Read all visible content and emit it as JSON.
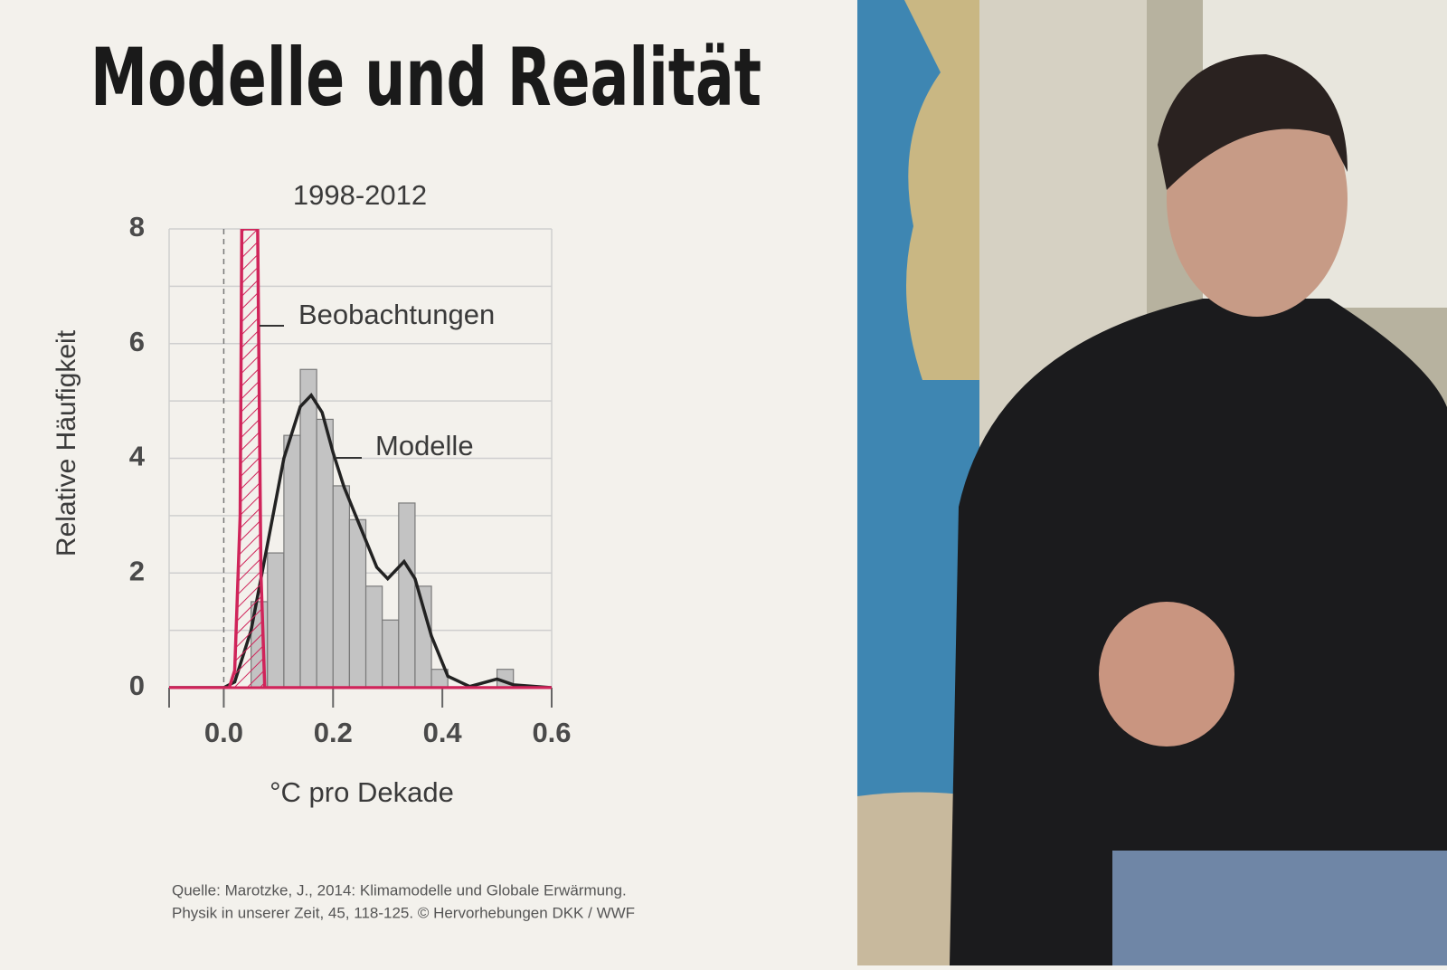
{
  "chart_data": {
    "type": "histogram",
    "title": "Modelle und Realität",
    "subtitle": "1998-2012",
    "y_label": "Relative Häufigkeit",
    "x_label": "°C pro Dekade",
    "source": [
      "Quelle: Marotzke, J., 2014: Klimamodelle und Globale Erwärmung.",
      "Physik in unserer Zeit, 45, 118-125. © Hervorhebungen DKK / WWF"
    ],
    "xlim": [
      -0.1,
      0.6
    ],
    "ylim": [
      0,
      8
    ],
    "xticks": [
      {
        "value": 0,
        "label": "0.0"
      },
      0.2,
      0.4,
      0.6
    ],
    "yticks": [
      0,
      2,
      4,
      6,
      8
    ],
    "y_minor_ticks": [
      1,
      3,
      5,
      7
    ],
    "grid": true,
    "reference_line_x": 0,
    "bins": [
      0.05,
      0.08,
      0.11,
      0.14,
      0.17,
      0.2,
      0.23,
      0.26,
      0.29,
      0.32,
      0.35,
      0.38,
      0.41,
      0.44,
      0.47,
      0.5,
      0.53
    ],
    "counts": [
      1.5,
      2.35,
      4.4,
      5.55,
      4.68,
      3.52,
      2.93,
      1.77,
      1.18,
      3.22,
      1.77,
      0.32,
      0,
      0,
      0,
      0.32
    ],
    "bar_color": "#c3c3c3",
    "series": [
      {
        "name": "Modelle",
        "color": "#222222",
        "x": [
          -0.1,
          0,
          0.02,
          0.05,
          0.08,
          0.11,
          0.14,
          0.16,
          0.18,
          0.2,
          0.22,
          0.25,
          0.28,
          0.3,
          0.33,
          0.35,
          0.38,
          0.41,
          0.45,
          0.5,
          0.53,
          0.6
        ],
        "y": [
          0,
          0,
          0.1,
          1,
          2.5,
          4,
          4.9,
          5.1,
          4.8,
          4.1,
          3.5,
          2.8,
          2.1,
          1.9,
          2.2,
          1.9,
          0.9,
          0.2,
          0.02,
          0.15,
          0.05,
          0
        ]
      },
      {
        "name": "Beobachtungen",
        "color": "#d0245a",
        "x": [
          -0.1,
          0.01,
          0.02,
          0.03,
          0.033,
          0.062,
          0.068,
          0.075,
          0.6
        ],
        "y": [
          0,
          0,
          0.3,
          3,
          8,
          8,
          2,
          0,
          0
        ]
      }
    ]
  }
}
